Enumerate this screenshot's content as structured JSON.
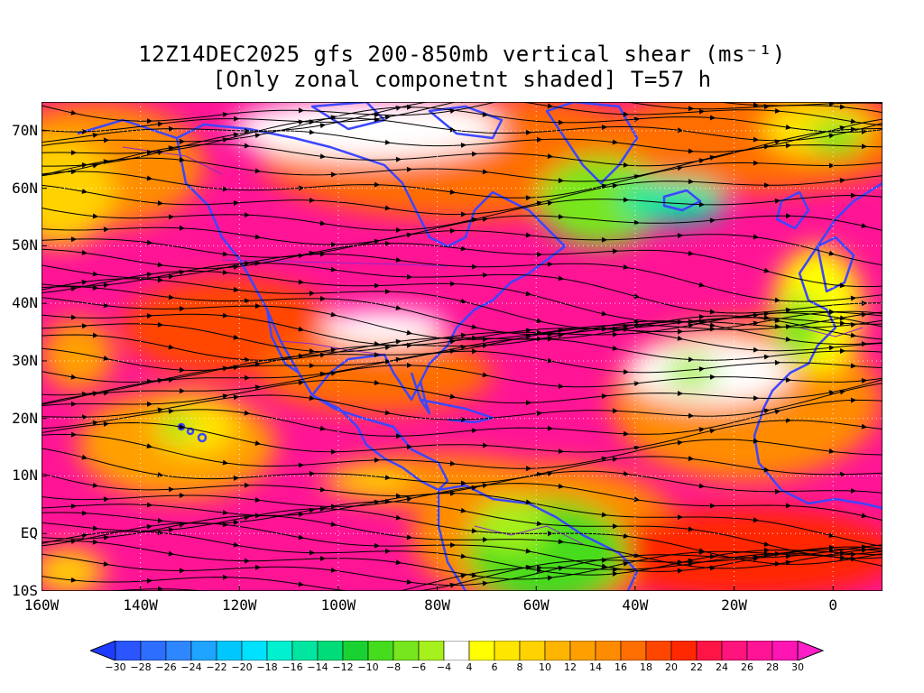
{
  "title": {
    "line1": "12Z14DEC2025 gfs 200-850mb vertical shear (ms⁻¹)",
    "line2": "[Only zonal componetnt shaded] T=57 h"
  },
  "axes": {
    "lat_labels": [
      "70N",
      "60N",
      "50N",
      "40N",
      "30N",
      "20N",
      "10N",
      "EQ",
      "10S"
    ],
    "lat_values": [
      70,
      60,
      50,
      40,
      30,
      20,
      10,
      0,
      -10
    ],
    "lon_labels": [
      "160W",
      "140W",
      "120W",
      "100W",
      "80W",
      "60W",
      "40W",
      "20W",
      "0"
    ],
    "lon_values": [
      -160,
      -140,
      -120,
      -100,
      -80,
      -60,
      -40,
      -20,
      0
    ],
    "lon_range": [
      -160,
      10
    ],
    "lat_range": [
      -10,
      75
    ]
  },
  "colorbar": {
    "labels": [
      "-30",
      "-28",
      "-26",
      "-24",
      "-22",
      "-20",
      "-18",
      "-16",
      "-14",
      "-12",
      "-10",
      "-8",
      "-6",
      "-4",
      "4",
      "6",
      "8",
      "10",
      "12",
      "14",
      "16",
      "18",
      "20",
      "22",
      "24",
      "26",
      "28",
      "30"
    ],
    "colors": [
      "#1e3cff",
      "#2a55ff",
      "#2d6eff",
      "#2f87ff",
      "#1fa5ff",
      "#00c8ff",
      "#00e1ff",
      "#00f0d0",
      "#00e6a0",
      "#00dc78",
      "#19d232",
      "#46dc1e",
      "#78e61e",
      "#a6f01e",
      "#ffffff",
      "#ffff00",
      "#ffe600",
      "#ffd200",
      "#ffb400",
      "#ffa000",
      "#ff8c00",
      "#ff6e00",
      "#ff4600",
      "#ff2800",
      "#ff1446",
      "#ff147d",
      "#ff1496",
      "#ff14b4",
      "#ff1ec8"
    ]
  }
}
